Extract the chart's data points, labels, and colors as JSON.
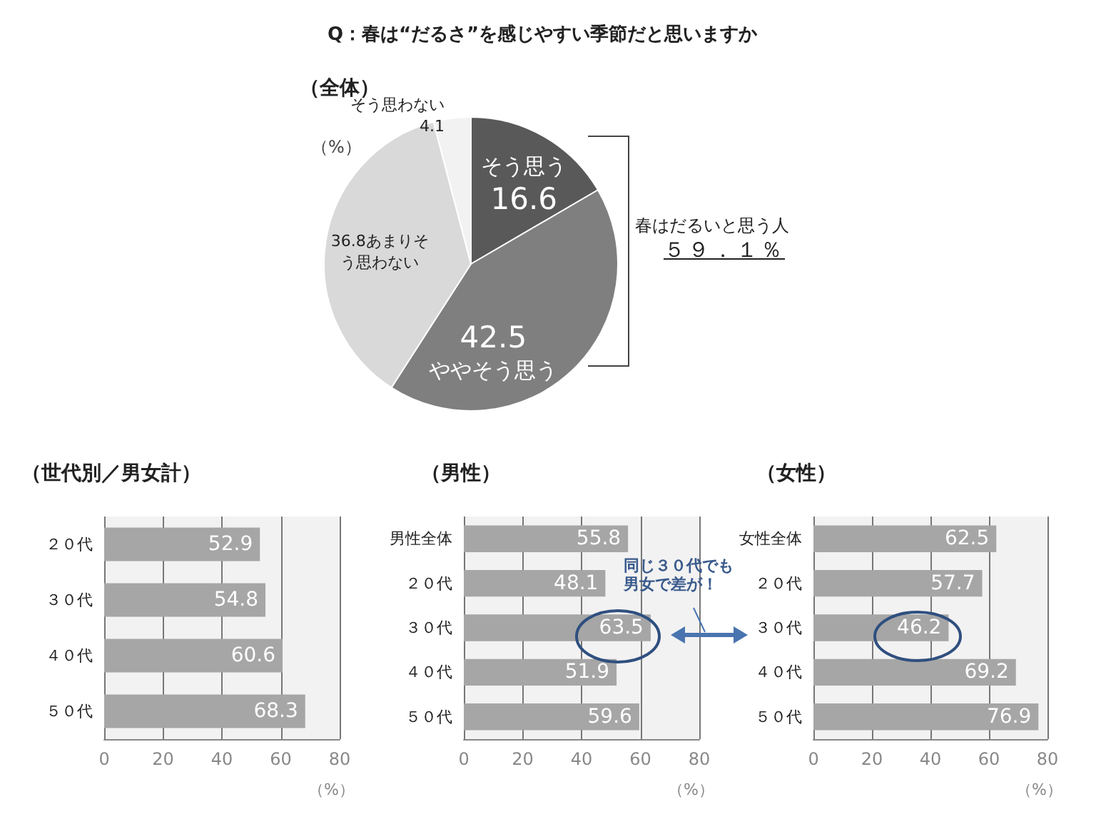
{
  "chart_data": [
    {
      "type": "pie",
      "title": "Q：春は“だるさ”を感じやすい季節だと思いますか",
      "subtitle": "（全体）",
      "categories": [
        "そう思う",
        "ややそう思う",
        "あまりそう思わない",
        "そう思わない"
      ],
      "values": [
        16.6,
        42.5,
        36.8,
        4.1
      ],
      "colors": [
        "#595959",
        "#7f7f7f",
        "#d9d9d9",
        "#f2f2f2"
      ],
      "data_labels": true,
      "legend": false,
      "annotations": [
        "（%）",
        "春はだるいと思う人",
        "５９．１％"
      ]
    },
    {
      "type": "bar",
      "orientation": "horizontal",
      "title": "（世代別／男女計）",
      "categories": [
        "２０代",
        "３０代",
        "４０代",
        "５０代"
      ],
      "values": [
        52.9,
        54.8,
        60.6,
        68.3
      ],
      "color": "#a6a6a6",
      "xlabel": "（%）",
      "xlim": [
        0,
        80
      ],
      "xticks": [
        0,
        20,
        40,
        60,
        80
      ],
      "grid": "x",
      "data_labels": true,
      "legend": false
    },
    {
      "type": "bar",
      "orientation": "horizontal",
      "title": "（男性）",
      "categories": [
        "男性全体",
        "２０代",
        "３０代",
        "４０代",
        "５０代"
      ],
      "values": [
        55.8,
        48.1,
        63.5,
        51.9,
        59.6
      ],
      "color": "#a6a6a6",
      "xlabel": "（%）",
      "xlim": [
        0,
        80
      ],
      "xticks": [
        0,
        20,
        40,
        60,
        80
      ],
      "grid": "x",
      "data_labels": true,
      "legend": false,
      "annotations": [
        "同じ３０代でも男女で差が！"
      ]
    },
    {
      "type": "bar",
      "orientation": "horizontal",
      "title": "（女性）",
      "categories": [
        "女性全体",
        "２０代",
        "３０代",
        "４０代",
        "５０代"
      ],
      "values": [
        62.5,
        57.7,
        46.2,
        69.2,
        76.9
      ],
      "color": "#a6a6a6",
      "xlabel": "（%）",
      "xlim": [
        0,
        80
      ],
      "xticks": [
        0,
        20,
        40,
        60,
        80
      ],
      "grid": "x",
      "data_labels": true,
      "legend": false
    }
  ]
}
